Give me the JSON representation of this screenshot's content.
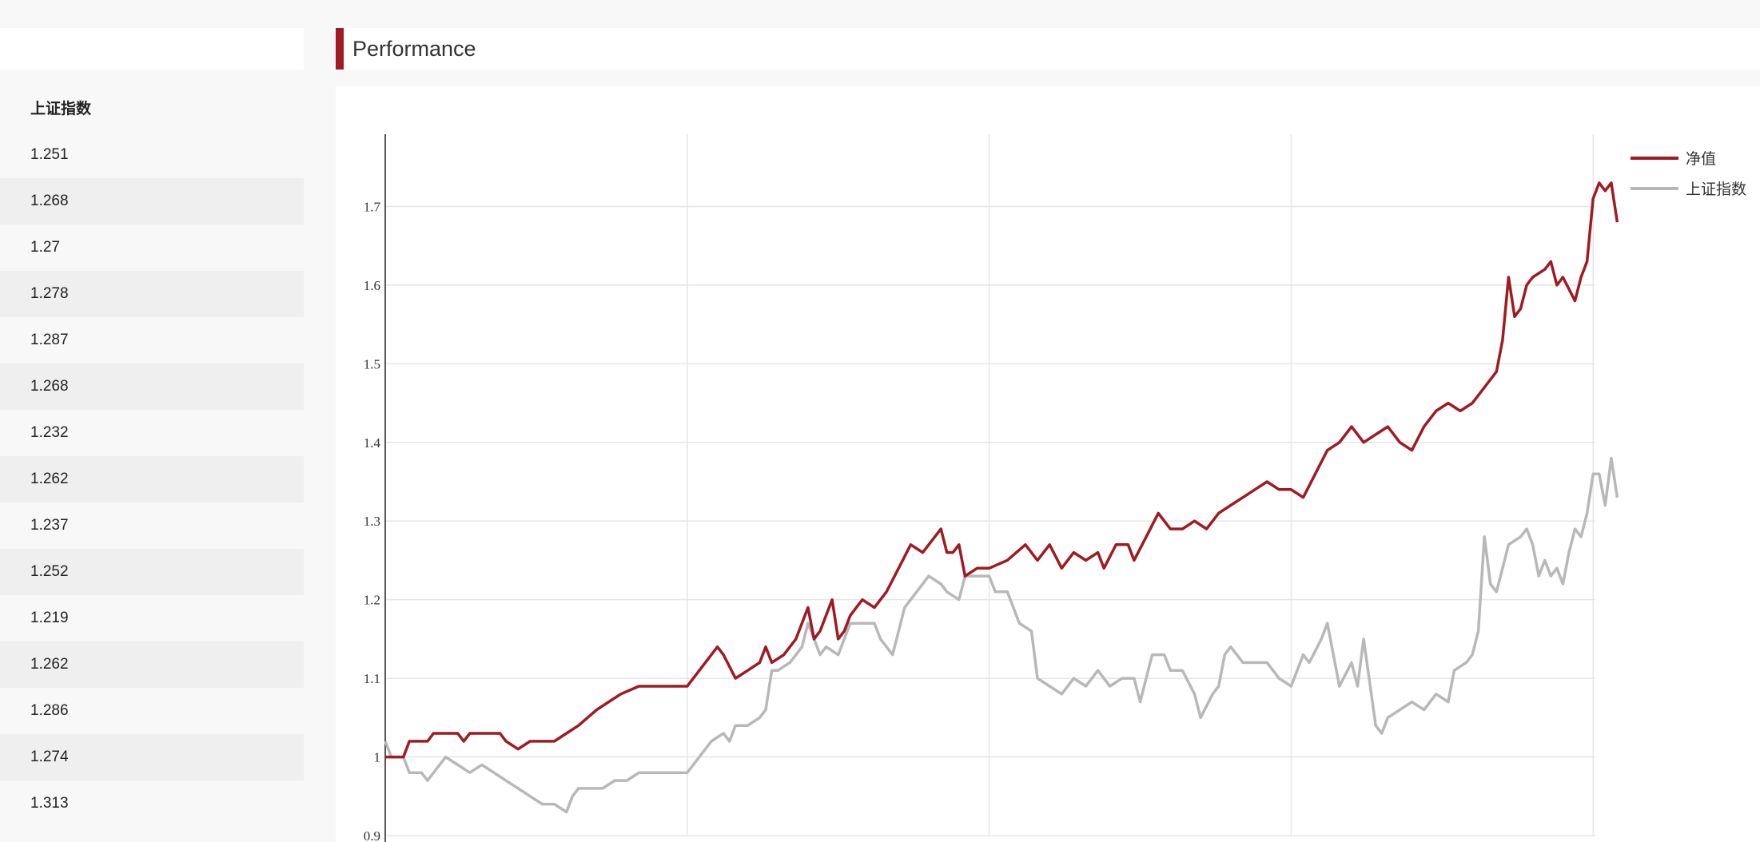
{
  "section": {
    "title": "Performance"
  },
  "table": {
    "header": "上证指数",
    "values": [
      "1.251",
      "1.268",
      "1.27",
      "1.278",
      "1.287",
      "1.268",
      "1.232",
      "1.262",
      "1.237",
      "1.252",
      "1.219",
      "1.262",
      "1.286",
      "1.274",
      "1.313"
    ]
  },
  "colors": {
    "accent": "#a01a21",
    "nav": "#a01a21",
    "index": "#b8b8b8",
    "grid": "#e6e6e6"
  },
  "chart_data": {
    "type": "line",
    "title": "",
    "xlabel": "",
    "ylabel": "",
    "ylim": [
      0.9,
      1.8
    ],
    "yticks": [
      0.9,
      1.0,
      1.1,
      1.2,
      1.3,
      1.4,
      1.5,
      1.6,
      1.7
    ],
    "ytick_labels": [
      "0.9",
      "1",
      "1.1",
      "1.2",
      "1.3",
      "1.4",
      "1.5",
      "1.6",
      "1.7"
    ],
    "xlim": [
      0,
      200
    ],
    "vertical_gridlines_x": [
      0,
      50,
      100,
      150,
      200
    ],
    "grid": true,
    "legend_position": "top-right",
    "series": [
      {
        "name": "净值",
        "color": "#a01a21",
        "points": [
          [
            0,
            1.0
          ],
          [
            3,
            1.0
          ],
          [
            4,
            1.02
          ],
          [
            7,
            1.02
          ],
          [
            8,
            1.03
          ],
          [
            12,
            1.03
          ],
          [
            13,
            1.02
          ],
          [
            14,
            1.03
          ],
          [
            19,
            1.03
          ],
          [
            20,
            1.02
          ],
          [
            22,
            1.01
          ],
          [
            24,
            1.02
          ],
          [
            26,
            1.02
          ],
          [
            28,
            1.02
          ],
          [
            30,
            1.03
          ],
          [
            32,
            1.04
          ],
          [
            35,
            1.06
          ],
          [
            37,
            1.07
          ],
          [
            39,
            1.08
          ],
          [
            42,
            1.09
          ],
          [
            44,
            1.09
          ],
          [
            46,
            1.09
          ],
          [
            48,
            1.09
          ],
          [
            50,
            1.09
          ],
          [
            52,
            1.11
          ],
          [
            55,
            1.14
          ],
          [
            56,
            1.13
          ],
          [
            58,
            1.1
          ],
          [
            60,
            1.11
          ],
          [
            62,
            1.12
          ],
          [
            63,
            1.14
          ],
          [
            64,
            1.12
          ],
          [
            66,
            1.13
          ],
          [
            68,
            1.15
          ],
          [
            70,
            1.19
          ],
          [
            71,
            1.15
          ],
          [
            72,
            1.16
          ],
          [
            74,
            1.2
          ],
          [
            75,
            1.15
          ],
          [
            76,
            1.16
          ],
          [
            77,
            1.18
          ],
          [
            79,
            1.2
          ],
          [
            81,
            1.19
          ],
          [
            83,
            1.21
          ],
          [
            85,
            1.24
          ],
          [
            87,
            1.27
          ],
          [
            89,
            1.26
          ],
          [
            91,
            1.28
          ],
          [
            92,
            1.29
          ],
          [
            93,
            1.26
          ],
          [
            94,
            1.26
          ],
          [
            95,
            1.27
          ],
          [
            96,
            1.23
          ],
          [
            98,
            1.24
          ],
          [
            100,
            1.24
          ],
          [
            103,
            1.25
          ],
          [
            106,
            1.27
          ],
          [
            108,
            1.25
          ],
          [
            110,
            1.27
          ],
          [
            112,
            1.24
          ],
          [
            114,
            1.26
          ],
          [
            116,
            1.25
          ],
          [
            118,
            1.26
          ],
          [
            119,
            1.24
          ],
          [
            121,
            1.27
          ],
          [
            123,
            1.27
          ],
          [
            124,
            1.25
          ],
          [
            126,
            1.28
          ],
          [
            128,
            1.31
          ],
          [
            130,
            1.29
          ],
          [
            132,
            1.29
          ],
          [
            134,
            1.3
          ],
          [
            136,
            1.29
          ],
          [
            138,
            1.31
          ],
          [
            140,
            1.32
          ],
          [
            142,
            1.33
          ],
          [
            144,
            1.34
          ],
          [
            146,
            1.35
          ],
          [
            148,
            1.34
          ],
          [
            150,
            1.34
          ],
          [
            152,
            1.33
          ],
          [
            154,
            1.36
          ],
          [
            156,
            1.39
          ],
          [
            158,
            1.4
          ],
          [
            160,
            1.42
          ],
          [
            162,
            1.4
          ],
          [
            164,
            1.41
          ],
          [
            166,
            1.42
          ],
          [
            168,
            1.4
          ],
          [
            170,
            1.39
          ],
          [
            172,
            1.42
          ],
          [
            174,
            1.44
          ],
          [
            176,
            1.45
          ],
          [
            178,
            1.44
          ],
          [
            180,
            1.45
          ],
          [
            182,
            1.47
          ],
          [
            184,
            1.49
          ],
          [
            185,
            1.53
          ],
          [
            186,
            1.61
          ],
          [
            187,
            1.56
          ],
          [
            188,
            1.57
          ],
          [
            189,
            1.6
          ],
          [
            190,
            1.61
          ],
          [
            192,
            1.62
          ],
          [
            193,
            1.63
          ],
          [
            194,
            1.6
          ],
          [
            195,
            1.61
          ],
          [
            197,
            1.58
          ],
          [
            198,
            1.61
          ],
          [
            199,
            1.63
          ],
          [
            200,
            1.71
          ],
          [
            201,
            1.73
          ],
          [
            202,
            1.72
          ],
          [
            203,
            1.73
          ],
          [
            204,
            1.68
          ]
        ]
      },
      {
        "name": "上证指数",
        "color": "#b8b8b8",
        "points": [
          [
            0,
            1.02
          ],
          [
            1,
            1.0
          ],
          [
            3,
            1.0
          ],
          [
            4,
            0.98
          ],
          [
            6,
            0.98
          ],
          [
            7,
            0.97
          ],
          [
            9,
            0.99
          ],
          [
            10,
            1.0
          ],
          [
            12,
            0.99
          ],
          [
            14,
            0.98
          ],
          [
            16,
            0.99
          ],
          [
            18,
            0.98
          ],
          [
            20,
            0.97
          ],
          [
            22,
            0.96
          ],
          [
            24,
            0.95
          ],
          [
            26,
            0.94
          ],
          [
            28,
            0.94
          ],
          [
            30,
            0.93
          ],
          [
            31,
            0.95
          ],
          [
            32,
            0.96
          ],
          [
            34,
            0.96
          ],
          [
            36,
            0.96
          ],
          [
            38,
            0.97
          ],
          [
            40,
            0.97
          ],
          [
            42,
            0.98
          ],
          [
            44,
            0.98
          ],
          [
            46,
            0.98
          ],
          [
            48,
            0.98
          ],
          [
            50,
            0.98
          ],
          [
            52,
            1.0
          ],
          [
            54,
            1.02
          ],
          [
            56,
            1.03
          ],
          [
            57,
            1.02
          ],
          [
            58,
            1.04
          ],
          [
            60,
            1.04
          ],
          [
            62,
            1.05
          ],
          [
            63,
            1.06
          ],
          [
            64,
            1.11
          ],
          [
            65,
            1.11
          ],
          [
            67,
            1.12
          ],
          [
            69,
            1.14
          ],
          [
            70,
            1.17
          ],
          [
            71,
            1.15
          ],
          [
            72,
            1.13
          ],
          [
            73,
            1.14
          ],
          [
            75,
            1.13
          ],
          [
            77,
            1.17
          ],
          [
            79,
            1.17
          ],
          [
            81,
            1.17
          ],
          [
            82,
            1.15
          ],
          [
            84,
            1.13
          ],
          [
            85,
            1.16
          ],
          [
            86,
            1.19
          ],
          [
            88,
            1.21
          ],
          [
            90,
            1.23
          ],
          [
            92,
            1.22
          ],
          [
            93,
            1.21
          ],
          [
            95,
            1.2
          ],
          [
            96,
            1.23
          ],
          [
            98,
            1.23
          ],
          [
            100,
            1.23
          ],
          [
            101,
            1.21
          ],
          [
            103,
            1.21
          ],
          [
            105,
            1.17
          ],
          [
            107,
            1.16
          ],
          [
            108,
            1.1
          ],
          [
            110,
            1.09
          ],
          [
            112,
            1.08
          ],
          [
            114,
            1.1
          ],
          [
            116,
            1.09
          ],
          [
            118,
            1.11
          ],
          [
            120,
            1.09
          ],
          [
            122,
            1.1
          ],
          [
            124,
            1.1
          ],
          [
            125,
            1.07
          ],
          [
            127,
            1.13
          ],
          [
            129,
            1.13
          ],
          [
            130,
            1.11
          ],
          [
            132,
            1.11
          ],
          [
            134,
            1.08
          ],
          [
            135,
            1.05
          ],
          [
            137,
            1.08
          ],
          [
            138,
            1.09
          ],
          [
            139,
            1.13
          ],
          [
            140,
            1.14
          ],
          [
            142,
            1.12
          ],
          [
            144,
            1.12
          ],
          [
            146,
            1.12
          ],
          [
            148,
            1.1
          ],
          [
            150,
            1.09
          ],
          [
            152,
            1.13
          ],
          [
            153,
            1.12
          ],
          [
            155,
            1.15
          ],
          [
            156,
            1.17
          ],
          [
            158,
            1.09
          ],
          [
            160,
            1.12
          ],
          [
            161,
            1.09
          ],
          [
            162,
            1.15
          ],
          [
            164,
            1.04
          ],
          [
            165,
            1.03
          ],
          [
            166,
            1.05
          ],
          [
            168,
            1.06
          ],
          [
            170,
            1.07
          ],
          [
            172,
            1.06
          ],
          [
            174,
            1.08
          ],
          [
            176,
            1.07
          ],
          [
            177,
            1.11
          ],
          [
            179,
            1.12
          ],
          [
            180,
            1.13
          ],
          [
            181,
            1.16
          ],
          [
            182,
            1.28
          ],
          [
            183,
            1.22
          ],
          [
            184,
            1.21
          ],
          [
            185,
            1.24
          ],
          [
            186,
            1.27
          ],
          [
            188,
            1.28
          ],
          [
            189,
            1.29
          ],
          [
            190,
            1.27
          ],
          [
            191,
            1.23
          ],
          [
            192,
            1.25
          ],
          [
            193,
            1.23
          ],
          [
            194,
            1.24
          ],
          [
            195,
            1.22
          ],
          [
            196,
            1.26
          ],
          [
            197,
            1.29
          ],
          [
            198,
            1.28
          ],
          [
            199,
            1.31
          ],
          [
            200,
            1.36
          ],
          [
            201,
            1.36
          ],
          [
            202,
            1.32
          ],
          [
            203,
            1.38
          ],
          [
            204,
            1.33
          ]
        ]
      }
    ]
  }
}
